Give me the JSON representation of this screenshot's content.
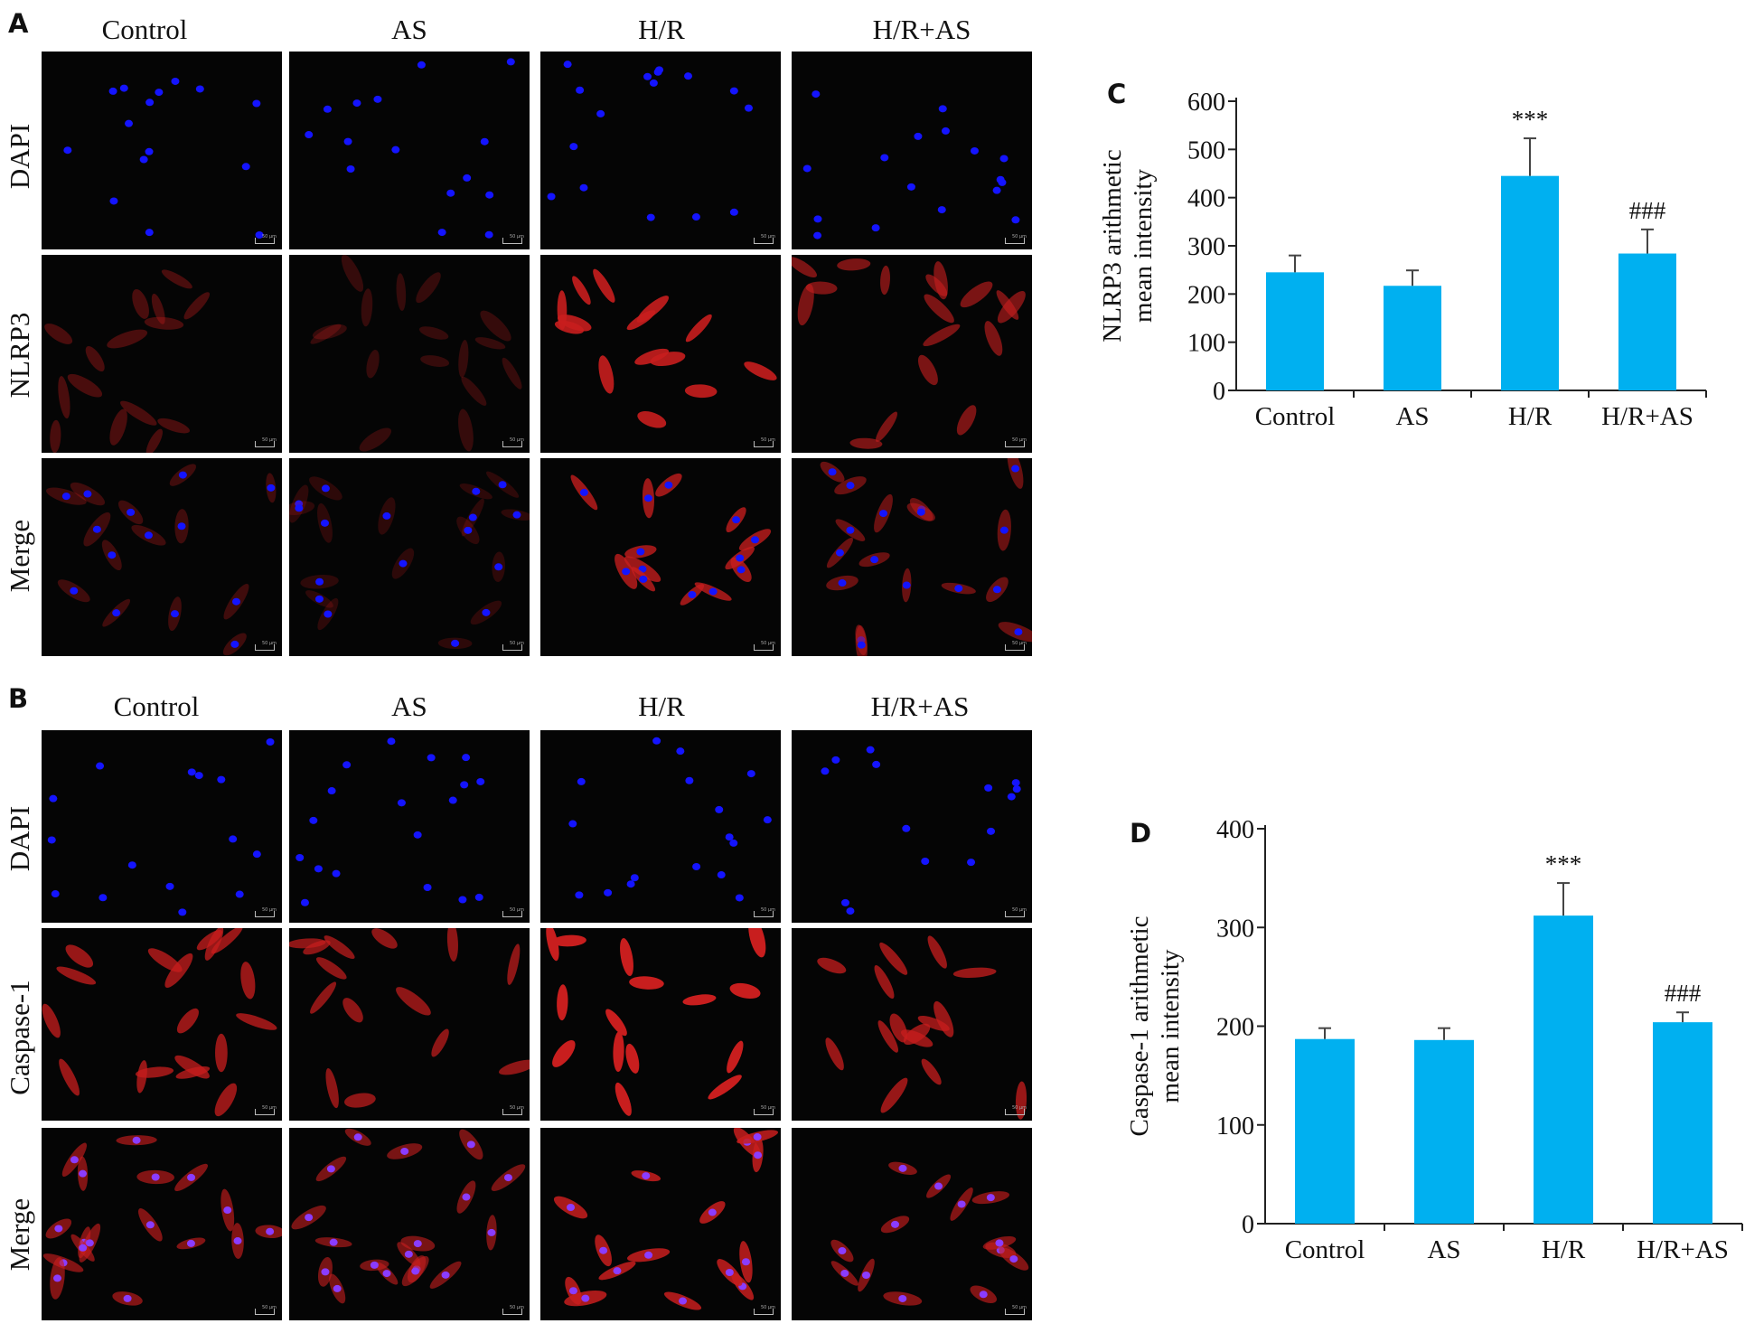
{
  "figure": {
    "panels": {
      "A": {
        "letter": "A",
        "columns": [
          "Control",
          "AS",
          "H/R",
          "H/R+AS"
        ],
        "rows": [
          "DAPI",
          "NLRP3",
          "Merge"
        ],
        "scale_bar_label": "50 μm"
      },
      "B": {
        "letter": "B",
        "columns": [
          "Control",
          "AS",
          "H/R",
          "H/R+AS"
        ],
        "rows": [
          "DAPI",
          "Caspase-1",
          "Merge"
        ],
        "scale_bar_label": "50 μm"
      }
    },
    "colors": {
      "bar": "#00b0f0",
      "dapi": "#1414ff",
      "stain": "#c81e1e",
      "background": "#050505"
    }
  },
  "chart_data": [
    {
      "panel": "C",
      "type": "bar",
      "categories": [
        "Control",
        "AS",
        "H/R",
        "H/R+AS"
      ],
      "values": [
        245,
        217,
        445,
        284
      ],
      "errors": [
        35,
        32,
        78,
        50
      ],
      "annotations": [
        "",
        "",
        "***",
        "###"
      ],
      "ylabel": [
        "NLRP3 arithmetic",
        "mean intensity"
      ],
      "ylim": [
        0,
        600
      ],
      "yticks": [
        0,
        100,
        200,
        300,
        400,
        500,
        600
      ],
      "grid": false
    },
    {
      "panel": "D",
      "type": "bar",
      "categories": [
        "Control",
        "AS",
        "H/R",
        "H/R+AS"
      ],
      "values": [
        187,
        186,
        312,
        204
      ],
      "errors": [
        11,
        12,
        33,
        10
      ],
      "annotations": [
        "",
        "",
        "***",
        "###"
      ],
      "ylabel": [
        "Caspase-1 arithmetic",
        "mean intensity"
      ],
      "ylim": [
        0,
        400
      ],
      "yticks": [
        0,
        100,
        200,
        300,
        400
      ],
      "grid": false
    }
  ]
}
